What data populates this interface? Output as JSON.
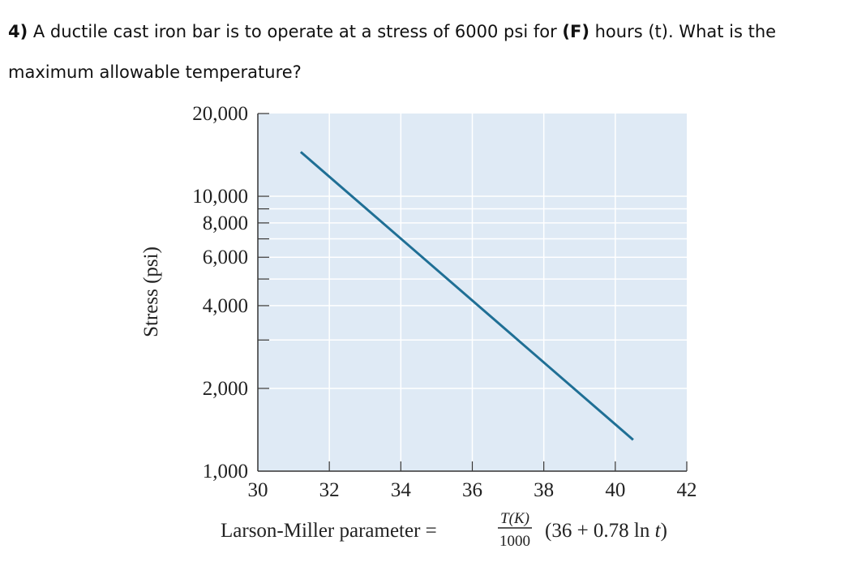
{
  "question": {
    "number": "4)",
    "text_before": " A ductile cast iron bar is to operate at a stress of 6000 psi for ",
    "variable": "(F)",
    "text_after": " hours (t). What is the maximum allowable temperature?"
  },
  "chart_data": {
    "type": "line",
    "ylabel": "Stress (psi)",
    "xlabel": "Larson-Miller parameter = ",
    "formula": {
      "numerator": "T(K)",
      "denominator": "1000",
      "expression": "(36 + 0.78 ln ",
      "variable": "t",
      "close": ")"
    },
    "x_ticks": [
      "30",
      "32",
      "34",
      "36",
      "38",
      "40",
      "42"
    ],
    "y_tick_labels": [
      "1,000",
      "2,000",
      "4,000",
      "6,000",
      "8,000",
      "10,000",
      "20,000"
    ],
    "y_tick_values": [
      1000,
      2000,
      3000,
      4000,
      5000,
      6000,
      7000,
      8000,
      9000,
      10000,
      20000
    ],
    "xlim": [
      30,
      42
    ],
    "ylim": [
      1000,
      20000
    ],
    "y_scale": "log",
    "grid": true,
    "series": [
      {
        "x": [
          31.2,
          40.5
        ],
        "y": [
          14500,
          1300
        ],
        "color": "#1f6f95"
      }
    ]
  }
}
